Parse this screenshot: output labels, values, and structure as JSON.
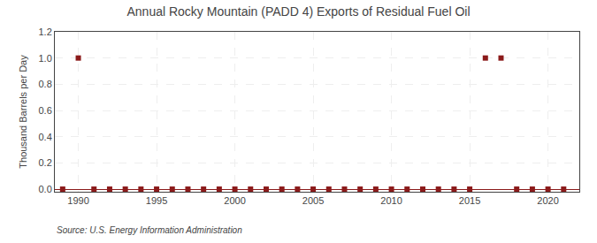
{
  "chart_data": {
    "type": "scatter",
    "title": "Annual Rocky Mountain (PADD 4) Exports of Residual Fuel Oil",
    "ylabel": "Thousand Barrels per Day",
    "annotations": [
      "Source: U.S. Energy Information Administration"
    ],
    "x": [
      1989,
      1990,
      1991,
      1992,
      1993,
      1994,
      1995,
      1996,
      1997,
      1998,
      1999,
      2000,
      2001,
      2002,
      2003,
      2004,
      2005,
      2006,
      2007,
      2008,
      2009,
      2010,
      2011,
      2012,
      2013,
      2014,
      2015,
      2016,
      2017,
      2018,
      2019,
      2020,
      2021
    ],
    "values": [
      0.0,
      1.0,
      0.0,
      0.0,
      0.0,
      0.0,
      0.0,
      0.0,
      0.0,
      0.0,
      0.0,
      0.0,
      0.0,
      0.0,
      0.0,
      0.0,
      0.0,
      0.0,
      0.0,
      0.0,
      0.0,
      0.0,
      0.0,
      0.0,
      0.0,
      0.0,
      0.0,
      1.0,
      1.0,
      0.0,
      0.0,
      0.0,
      0.0
    ],
    "color": "#8b1a1a",
    "marker": "square",
    "xlim": [
      1988.5,
      2022
    ],
    "xticks": [
      1990,
      1995,
      2000,
      2005,
      2010,
      2015,
      2020
    ],
    "ylim": [
      -0.02,
      1.2
    ],
    "yticks": [
      {
        "value": 0.0,
        "label": "0.0"
      },
      0.2,
      0.4,
      0.6,
      0.8,
      {
        "value": 1.0,
        "label": "1.0"
      },
      1.2
    ],
    "grid": true
  }
}
